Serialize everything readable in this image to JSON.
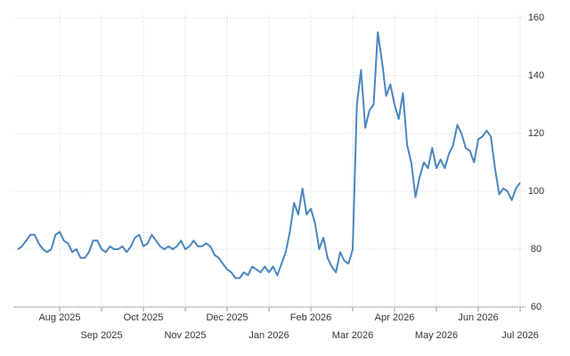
{
  "chart_data": {
    "type": "line",
    "categories": [
      null,
      null,
      null,
      null,
      null,
      null,
      null,
      null,
      null,
      null,
      "Aug 2025",
      null,
      null,
      null,
      null,
      null,
      null,
      null,
      null,
      null,
      "Sep 2025",
      null,
      null,
      null,
      null,
      null,
      null,
      null,
      null,
      null,
      "Oct 2025",
      null,
      null,
      null,
      null,
      null,
      null,
      null,
      null,
      null,
      "Nov 2025",
      null,
      null,
      null,
      null,
      null,
      null,
      null,
      null,
      null,
      "Dec 2025",
      null,
      null,
      null,
      null,
      null,
      null,
      null,
      null,
      null,
      "Jan 2026",
      null,
      null,
      null,
      null,
      null,
      null,
      null,
      null,
      null,
      "Feb 2026",
      null,
      null,
      null,
      null,
      null,
      null,
      null,
      null,
      null,
      "Mar 2026",
      null,
      null,
      null,
      null,
      null,
      null,
      null,
      null,
      null,
      "Apr 2026",
      null,
      null,
      null,
      null,
      null,
      null,
      null,
      null,
      null,
      "May 2026",
      null,
      null,
      null,
      null,
      null,
      null,
      null,
      null,
      null,
      "Jun 2026",
      null,
      null,
      null,
      null,
      null,
      null,
      null,
      null,
      null,
      "Jul 2026"
    ],
    "values": [
      80,
      81,
      83,
      85,
      85,
      82,
      80,
      79,
      80,
      85,
      86,
      83,
      82,
      79,
      80,
      77,
      77,
      79,
      83,
      83,
      80,
      79,
      81,
      80,
      80,
      81,
      79,
      81,
      84,
      85,
      81,
      82,
      85,
      83,
      81,
      80,
      81,
      80,
      81,
      83,
      80,
      81,
      83,
      81,
      81,
      82,
      81,
      78,
      77,
      75,
      73,
      72,
      70,
      70,
      72,
      71,
      74,
      73,
      72,
      74,
      72,
      74,
      71,
      75,
      79,
      86,
      96,
      92,
      101,
      92,
      94,
      89,
      80,
      84,
      77,
      74,
      72,
      79,
      76,
      75,
      80,
      130,
      142,
      122,
      128,
      130,
      155,
      145,
      133,
      137,
      130,
      125,
      134,
      116,
      110,
      98,
      105,
      110,
      108,
      115,
      108,
      111,
      108,
      113,
      116,
      123,
      120,
      115,
      114,
      110,
      118,
      119,
      121,
      119,
      108,
      99,
      101,
      100,
      97,
      101,
      103
    ],
    "color": "#4a86c0",
    "ylim": [
      60,
      160
    ],
    "yticks": [
      60,
      80,
      100,
      120,
      140,
      160
    ],
    "grid": true
  }
}
